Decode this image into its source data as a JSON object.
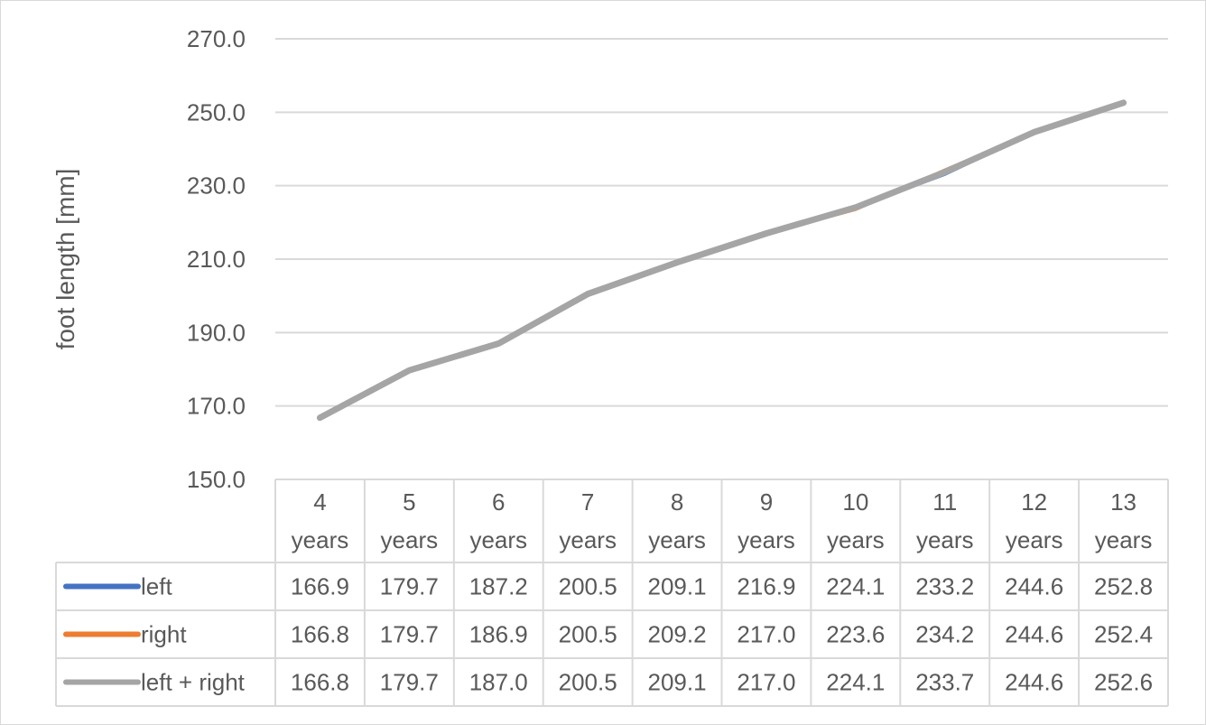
{
  "chart_data": {
    "type": "line",
    "title": "",
    "xlabel": "",
    "ylabel": "foot length [mm]",
    "ylim": [
      150,
      270
    ],
    "yticks": [
      "150.0",
      "170.0",
      "190.0",
      "210.0",
      "230.0",
      "250.0",
      "270.0"
    ],
    "grid": true,
    "legend": "data table",
    "categories": [
      [
        "4",
        "years"
      ],
      [
        "5",
        "years"
      ],
      [
        "6",
        "years"
      ],
      [
        "7",
        "years"
      ],
      [
        "8",
        "years"
      ],
      [
        "9",
        "years"
      ],
      [
        "10",
        "years"
      ],
      [
        "11",
        "years"
      ],
      [
        "12",
        "years"
      ],
      [
        "13",
        "years"
      ]
    ],
    "series": [
      {
        "name": "left",
        "color": "#4472c4",
        "values": [
          166.9,
          179.7,
          187.2,
          200.5,
          209.1,
          216.9,
          224.1,
          233.2,
          244.6,
          252.8
        ],
        "labels": [
          "166.9",
          "179.7",
          "187.2",
          "200.5",
          "209.1",
          "216.9",
          "224.1",
          "233.2",
          "244.6",
          "252.8"
        ]
      },
      {
        "name": "right",
        "color": "#ed7d31",
        "values": [
          166.8,
          179.7,
          186.9,
          200.5,
          209.2,
          217.0,
          223.6,
          234.2,
          244.6,
          252.4
        ],
        "labels": [
          "166.8",
          "179.7",
          "186.9",
          "200.5",
          "209.2",
          "217.0",
          "223.6",
          "234.2",
          "244.6",
          "252.4"
        ]
      },
      {
        "name": "left + right",
        "color": "#a5a5a5",
        "values": [
          166.8,
          179.7,
          187.0,
          200.5,
          209.1,
          217.0,
          224.1,
          233.7,
          244.6,
          252.6
        ],
        "labels": [
          "166.8",
          "179.7",
          "187.0",
          "200.5",
          "209.1",
          "217.0",
          "224.1",
          "233.7",
          "244.6",
          "252.6"
        ]
      }
    ]
  }
}
